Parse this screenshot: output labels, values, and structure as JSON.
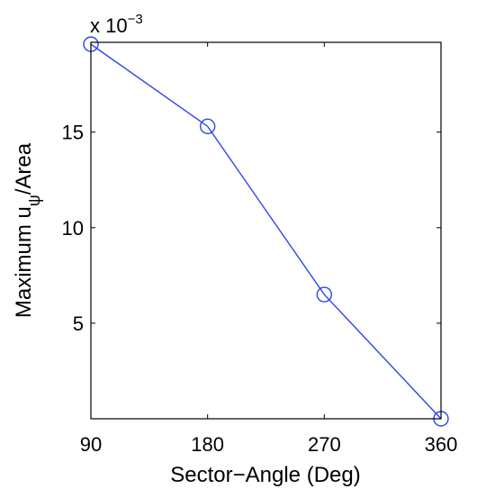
{
  "chart_data": {
    "type": "line",
    "title": "",
    "xlabel": "Sector−Angle (Deg)",
    "ylabel": {
      "main": "Maximum u",
      "subscript": "ψ",
      "suffix": "/Area"
    },
    "y_exponent": {
      "prefix": "x 10",
      "power": "−3"
    },
    "xlim": [
      90,
      360
    ],
    "ylim": [
      0,
      19.7
    ],
    "xticks": [
      90,
      180,
      270,
      360
    ],
    "xtick_labels": [
      "90",
      "180",
      "270",
      "360"
    ],
    "yticks": [
      5,
      10,
      15
    ],
    "ytick_labels": [
      "5",
      "10",
      "15"
    ],
    "grid": false,
    "marker": "circle",
    "series": [
      {
        "x": [
          90,
          180,
          270,
          360
        ],
        "y": [
          19.6,
          15.3,
          6.5,
          0.0
        ],
        "color": "#2f45e8"
      }
    ]
  }
}
